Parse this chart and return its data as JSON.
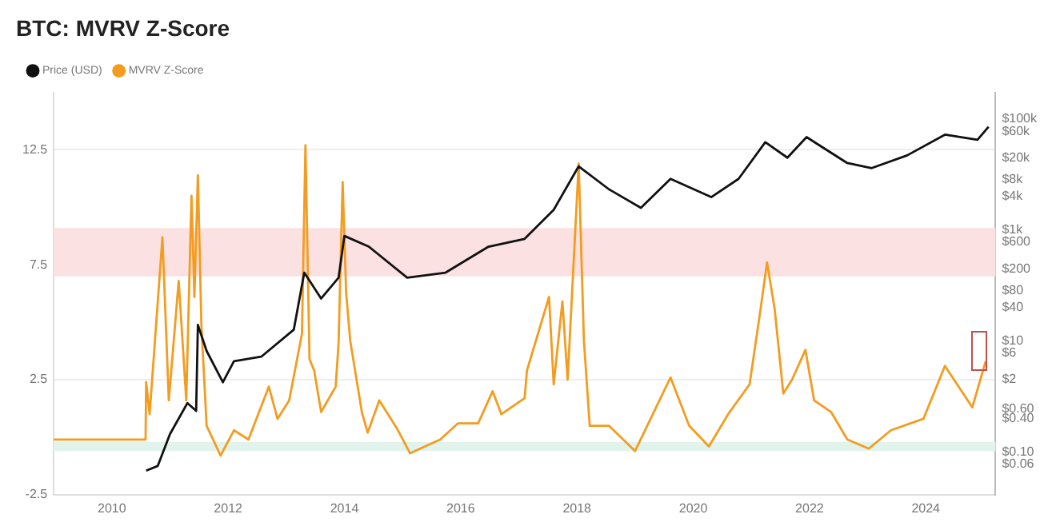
{
  "chart_data": {
    "type": "line",
    "title": "BTC: MVRV Z-Score",
    "xlim": [
      2009,
      2025.2
    ],
    "xticks": [
      2010,
      2012,
      2014,
      2016,
      2018,
      2020,
      2022,
      2024
    ],
    "ylim": [
      -2.5,
      15
    ],
    "yticks": [
      -2.5,
      2.5,
      7.5,
      12.5
    ],
    "y2lim": [
      0.017,
      300000
    ],
    "y2ticks": [
      {
        "value": 100000,
        "label": "$100k"
      },
      {
        "value": 60000,
        "label": "$60k"
      },
      {
        "value": 20000,
        "label": "$20k"
      },
      {
        "value": 8000,
        "label": "$8k"
      },
      {
        "value": 4000,
        "label": "$4k"
      },
      {
        "value": 1000,
        "label": "$1k"
      },
      {
        "value": 600,
        "label": "$600"
      },
      {
        "value": 200,
        "label": "$200"
      },
      {
        "value": 80,
        "label": "$80"
      },
      {
        "value": 40,
        "label": "$40"
      },
      {
        "value": 10,
        "label": "$10"
      },
      {
        "value": 6,
        "label": "$6"
      },
      {
        "value": 2,
        "label": "$2"
      },
      {
        "value": 0.6,
        "label": "$0.60"
      },
      {
        "value": 0.4,
        "label": "$0.40"
      },
      {
        "value": 0.1,
        "label": "$0.10"
      },
      {
        "value": 0.06,
        "label": "$0.06"
      }
    ],
    "log": "y2",
    "grid": "y",
    "legend": "top left",
    "marker": "none",
    "line_style": "solid",
    "bands": [
      {
        "axis": "y",
        "from": 7.0,
        "to": 9.1,
        "color": "#fbe1e1"
      },
      {
        "axis": "y",
        "from": -0.6,
        "to": -0.2,
        "color": "#e2f3ec"
      }
    ],
    "series": [
      {
        "name": "MVRV Z-Score",
        "color": "#f39c1f",
        "x": [
          2009.0,
          2010.58,
          2010.59,
          2010.65,
          2010.87,
          2010.98,
          2011.15,
          2011.28,
          2011.37,
          2011.42,
          2011.48,
          2011.54,
          2011.63,
          2011.87,
          2012.1,
          2012.35,
          2012.7,
          2012.85,
          2013.05,
          2013.27,
          2013.33,
          2013.4,
          2013.48,
          2013.6,
          2013.85,
          2013.9,
          2013.97,
          2014.03,
          2014.1,
          2014.3,
          2014.4,
          2014.6,
          2014.9,
          2015.13,
          2015.65,
          2015.95,
          2016.3,
          2016.55,
          2016.7,
          2017.1,
          2017.14,
          2017.52,
          2017.6,
          2017.75,
          2017.84,
          2018.03,
          2018.12,
          2018.22,
          2018.55,
          2019.0,
          2019.61,
          2019.93,
          2020.27,
          2020.6,
          2020.97,
          2021.16,
          2021.27,
          2021.4,
          2021.55,
          2021.7,
          2021.93,
          2022.08,
          2022.37,
          2022.65,
          2023.02,
          2023.4,
          2023.96,
          2024.33,
          2024.8,
          2025.03
        ],
        "values": [
          -0.1,
          -0.1,
          2.4,
          1.0,
          8.7,
          1.6,
          6.8,
          1.6,
          10.5,
          6.1,
          11.4,
          4.9,
          0.5,
          -0.8,
          0.3,
          -0.1,
          2.2,
          0.8,
          1.6,
          4.5,
          12.7,
          3.4,
          2.9,
          1.1,
          2.2,
          4.1,
          11.1,
          6.3,
          4.2,
          1.1,
          0.2,
          1.6,
          0.4,
          -0.7,
          -0.1,
          0.6,
          0.6,
          2.0,
          1.0,
          1.7,
          2.9,
          6.1,
          2.3,
          5.9,
          2.5,
          11.9,
          4.2,
          0.5,
          0.5,
          -0.6,
          2.6,
          0.5,
          -0.4,
          1.0,
          2.3,
          5.6,
          7.6,
          5.6,
          1.9,
          2.5,
          3.8,
          1.6,
          1.1,
          -0.1,
          -0.5,
          0.3,
          0.8,
          3.1,
          1.3,
          3.3
        ]
      },
      {
        "name": "Price (USD)",
        "color": "#111111",
        "axis": "y2",
        "x": [
          2010.59,
          2010.79,
          2011.0,
          2011.3,
          2011.45,
          2011.48,
          2011.63,
          2011.91,
          2012.1,
          2012.57,
          2013.13,
          2013.31,
          2013.6,
          2013.9,
          2014.0,
          2014.42,
          2015.08,
          2015.74,
          2016.48,
          2017.1,
          2017.6,
          2018.03,
          2018.55,
          2019.1,
          2019.61,
          2020.31,
          2020.78,
          2021.24,
          2021.62,
          2021.95,
          2022.65,
          2023.07,
          2023.68,
          2024.33,
          2024.89,
          2025.08
        ],
        "values": [
          0.046,
          0.056,
          0.21,
          0.76,
          0.55,
          19.5,
          6.6,
          1.8,
          4.3,
          5.2,
          16,
          170,
          58,
          138,
          780,
          500,
          138,
          170,
          500,
          690,
          2300,
          14000,
          5400,
          2500,
          8300,
          3900,
          8300,
          38000,
          20000,
          47000,
          16000,
          13000,
          22000,
          52000,
          42000,
          72000
        ]
      }
    ]
  }
}
